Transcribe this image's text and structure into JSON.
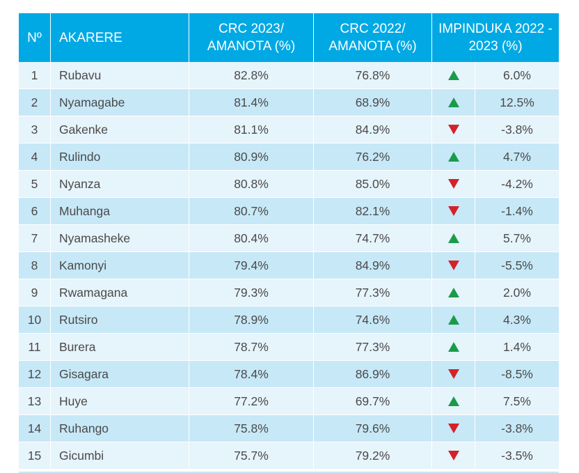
{
  "header": {
    "no": "Nº",
    "district": "AKARERE",
    "crc2023": "CRC 2023/ AMANOTA (%)",
    "crc2022": "CRC 2022/ AMANOTA (%)",
    "change": "IMPINDUKA 2022 - 2023 (%)"
  },
  "colors": {
    "header_bg": "#00a9e4",
    "row_light": "#e6f4fb",
    "row_dark": "#c7e8f7",
    "up": "#1a9b4b",
    "down": "#d3222a"
  },
  "rows": [
    {
      "no": "1",
      "district": "Rubavu",
      "crc2023": "82.8%",
      "crc2022": "76.8%",
      "trend": "up",
      "change": "6.0%"
    },
    {
      "no": "2",
      "district": "Nyamagabe",
      "crc2023": "81.4%",
      "crc2022": "68.9%",
      "trend": "up",
      "change": "12.5%"
    },
    {
      "no": "3",
      "district": "Gakenke",
      "crc2023": "81.1%",
      "crc2022": "84.9%",
      "trend": "down",
      "change": "-3.8%"
    },
    {
      "no": "4",
      "district": "Rulindo",
      "crc2023": "80.9%",
      "crc2022": "76.2%",
      "trend": "up",
      "change": "4.7%"
    },
    {
      "no": "5",
      "district": "Nyanza",
      "crc2023": "80.8%",
      "crc2022": "85.0%",
      "trend": "down",
      "change": "-4.2%"
    },
    {
      "no": "6",
      "district": "Muhanga",
      "crc2023": "80.7%",
      "crc2022": "82.1%",
      "trend": "down",
      "change": "-1.4%"
    },
    {
      "no": "7",
      "district": "Nyamasheke",
      "crc2023": "80.4%",
      "crc2022": "74.7%",
      "trend": "up",
      "change": "5.7%"
    },
    {
      "no": "8",
      "district": "Kamonyi",
      "crc2023": "79.4%",
      "crc2022": "84.9%",
      "trend": "down",
      "change": "-5.5%"
    },
    {
      "no": "9",
      "district": "Rwamagana",
      "crc2023": "79.3%",
      "crc2022": "77.3%",
      "trend": "up",
      "change": "2.0%"
    },
    {
      "no": "10",
      "district": "Rutsiro",
      "crc2023": "78.9%",
      "crc2022": "74.6%",
      "trend": "up",
      "change": "4.3%"
    },
    {
      "no": "11",
      "district": "Burera",
      "crc2023": "78.7%",
      "crc2022": "77.3%",
      "trend": "up",
      "change": "1.4%"
    },
    {
      "no": "12",
      "district": "Gisagara",
      "crc2023": "78.4%",
      "crc2022": "86.9%",
      "trend": "down",
      "change": "-8.5%"
    },
    {
      "no": "13",
      "district": "Huye",
      "crc2023": "77.2%",
      "crc2022": "69.7%",
      "trend": "up",
      "change": "7.5%"
    },
    {
      "no": "14",
      "district": "Ruhango",
      "crc2023": "75.8%",
      "crc2022": "79.6%",
      "trend": "down",
      "change": "-3.8%"
    },
    {
      "no": "15",
      "district": "Gicumbi",
      "crc2023": "75.7%",
      "crc2022": "79.2%",
      "trend": "down",
      "change": "-3.5%"
    }
  ]
}
